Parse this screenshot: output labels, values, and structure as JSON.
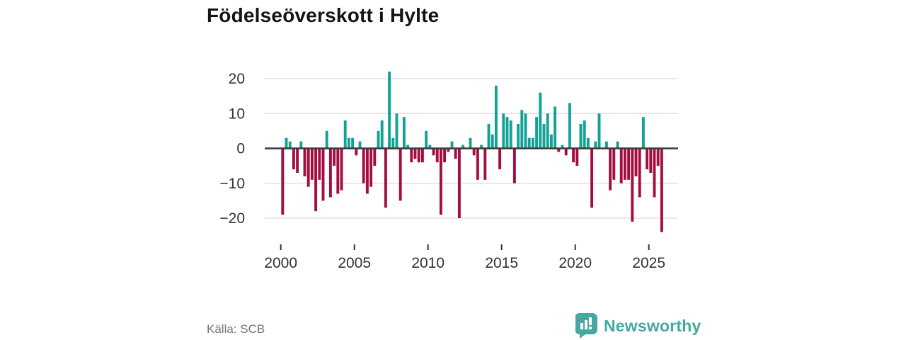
{
  "title": "Födelseöverskott i Hylte",
  "source": "Källa: SCB",
  "brand": {
    "name": "Newsworthy",
    "color": "#46a8a1",
    "icon": "bar-chart-speech-bubble-icon"
  },
  "chart_data": {
    "type": "bar",
    "title": "Födelseöverskott i Hylte",
    "xlabel": "",
    "ylabel": "",
    "x_tick_years": [
      2000,
      2005,
      2010,
      2015,
      2020,
      2025
    ],
    "y_ticks": [
      20,
      10,
      0,
      -10,
      -20
    ],
    "y_tick_labels": [
      "20",
      "10",
      "0",
      "−10",
      "−20"
    ],
    "ylim": [
      -26,
      24
    ],
    "grid": true,
    "legend": "none",
    "bar_period": "quarterly",
    "colors": {
      "positive": "#12a295",
      "negative": "#a50d41",
      "grid": "#e2e2e2",
      "zero_line": "#3a3a3a",
      "tick_text": "#333333"
    },
    "values_by_year": [
      {
        "year": 2000,
        "q": [
          -19,
          3,
          2,
          -6
        ]
      },
      {
        "year": 2001,
        "q": [
          -7,
          2,
          -8,
          -11
        ]
      },
      {
        "year": 2002,
        "q": [
          -9,
          -18,
          -9,
          -15
        ]
      },
      {
        "year": 2003,
        "q": [
          5,
          -14,
          -5,
          -13
        ]
      },
      {
        "year": 2004,
        "q": [
          -12,
          8,
          3,
          3
        ]
      },
      {
        "year": 2005,
        "q": [
          -2,
          2,
          -10,
          -13
        ]
      },
      {
        "year": 2006,
        "q": [
          -11,
          -5,
          5,
          8
        ]
      },
      {
        "year": 2007,
        "q": [
          -17,
          22,
          3,
          10
        ]
      },
      {
        "year": 2008,
        "q": [
          -15,
          9,
          1,
          -4
        ]
      },
      {
        "year": 2009,
        "q": [
          -3,
          -4,
          -4,
          5
        ]
      },
      {
        "year": 2010,
        "q": [
          1,
          -2,
          -4,
          -19
        ]
      },
      {
        "year": 2011,
        "q": [
          -4,
          -1,
          2,
          -3
        ]
      },
      {
        "year": 2012,
        "q": [
          -20,
          1,
          0,
          3
        ]
      },
      {
        "year": 2013,
        "q": [
          -2,
          -9,
          1,
          -9
        ]
      },
      {
        "year": 2014,
        "q": [
          7,
          4,
          18,
          -6
        ]
      },
      {
        "year": 2015,
        "q": [
          10,
          9,
          8,
          -10
        ]
      },
      {
        "year": 2016,
        "q": [
          7,
          11,
          10,
          3
        ]
      },
      {
        "year": 2017,
        "q": [
          3,
          9,
          16,
          7
        ]
      },
      {
        "year": 2018,
        "q": [
          10,
          4,
          12,
          -1
        ]
      },
      {
        "year": 2019,
        "q": [
          1,
          -2,
          13,
          -4
        ]
      },
      {
        "year": 2020,
        "q": [
          -5,
          7,
          8,
          3
        ]
      },
      {
        "year": 2021,
        "q": [
          -17,
          2,
          10,
          0
        ]
      },
      {
        "year": 2022,
        "q": [
          2,
          -12,
          -9,
          2
        ]
      },
      {
        "year": 2023,
        "q": [
          -10,
          -9,
          -9,
          -21
        ]
      },
      {
        "year": 2024,
        "q": [
          -8,
          -14,
          9,
          -6
        ]
      },
      {
        "year": 2025,
        "q": [
          -7,
          -14,
          -5,
          -24
        ]
      }
    ]
  }
}
